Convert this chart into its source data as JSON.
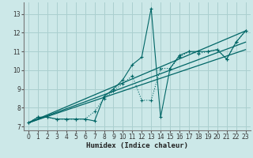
{
  "xlabel": "Humidex (Indice chaleur)",
  "bg_color": "#cce8e8",
  "grid_color": "#aacfcf",
  "line_color": "#006666",
  "xlim": [
    -0.5,
    23.5
  ],
  "ylim": [
    6.8,
    13.6
  ],
  "xticks": [
    0,
    1,
    2,
    3,
    4,
    5,
    6,
    7,
    8,
    9,
    10,
    11,
    12,
    13,
    14,
    15,
    16,
    17,
    18,
    19,
    20,
    21,
    22,
    23
  ],
  "yticks": [
    7,
    8,
    9,
    10,
    11,
    12,
    13
  ],
  "series1_x": [
    0,
    1,
    2,
    3,
    4,
    5,
    6,
    7,
    8,
    9,
    10,
    11,
    12,
    13,
    14,
    15,
    16,
    17,
    18,
    19,
    20,
    21,
    22,
    23
  ],
  "series1_y": [
    7.2,
    7.5,
    7.5,
    7.4,
    7.4,
    7.4,
    7.4,
    7.3,
    8.6,
    9.0,
    9.5,
    10.3,
    10.7,
    13.3,
    7.5,
    10.1,
    10.8,
    11.0,
    11.0,
    11.0,
    11.1,
    10.6,
    11.5,
    12.1
  ],
  "series2_x": [
    0,
    1,
    2,
    3,
    4,
    5,
    6,
    7,
    8,
    9,
    10,
    11,
    12,
    13,
    14,
    15,
    16,
    17,
    18,
    19,
    20,
    21,
    22,
    23
  ],
  "series2_y": [
    7.2,
    7.5,
    7.5,
    7.4,
    7.4,
    7.4,
    7.4,
    7.8,
    8.5,
    8.9,
    9.3,
    9.7,
    8.4,
    8.4,
    10.1,
    10.1,
    10.7,
    11.0,
    10.9,
    11.0,
    11.1,
    10.6,
    11.5,
    12.1
  ],
  "line_straight1": [
    [
      0,
      23
    ],
    [
      7.2,
      12.1
    ]
  ],
  "line_straight2": [
    [
      0,
      23
    ],
    [
      7.2,
      11.5
    ]
  ],
  "line_straight3": [
    [
      0,
      23
    ],
    [
      7.2,
      11.1
    ]
  ]
}
